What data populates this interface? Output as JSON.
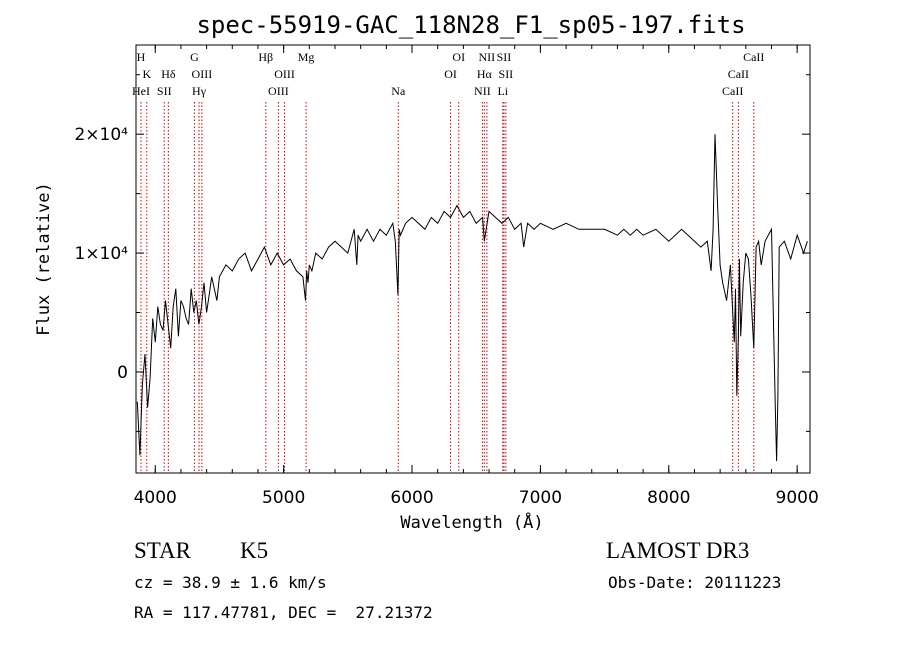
{
  "chart_data": {
    "type": "line",
    "title": "spec-55919-GAC_118N28_F1_sp05-197.fits",
    "xlabel": "Wavelength (Å)",
    "ylabel": "Flux (relative)",
    "xlim": [
      3850,
      9100
    ],
    "ylim": [
      -8500,
      27500
    ],
    "x_ticks": [
      4000,
      5000,
      6000,
      7000,
      8000,
      9000
    ],
    "y_ticks": [
      {
        "value": 0,
        "label": "0"
      },
      {
        "value": 10000,
        "label": "1×10⁴"
      },
      {
        "value": 20000,
        "label": "2×10⁴"
      }
    ],
    "series": [
      {
        "x": [
          3860,
          3880,
          3900,
          3920,
          3940,
          3960,
          3980,
          4000,
          4020,
          4040,
          4060,
          4080,
          4100,
          4120,
          4140,
          4160,
          4180,
          4200,
          4220,
          4240,
          4260,
          4280,
          4300,
          4320,
          4340,
          4360,
          4380,
          4400,
          4420,
          4440,
          4460,
          4480,
          4500,
          4550,
          4600,
          4650,
          4700,
          4750,
          4800,
          4850,
          4900,
          4950,
          5000,
          5050,
          5100,
          5150,
          5170,
          5180,
          5190,
          5200,
          5220,
          5250,
          5300,
          5350,
          5400,
          5450,
          5500,
          5550,
          5570,
          5580,
          5600,
          5650,
          5700,
          5750,
          5800,
          5850,
          5870,
          5890,
          5900,
          5910,
          5950,
          6000,
          6050,
          6100,
          6150,
          6200,
          6250,
          6300,
          6350,
          6400,
          6450,
          6500,
          6550,
          6563,
          6600,
          6650,
          6700,
          6750,
          6800,
          6850,
          6870,
          6900,
          6950,
          7000,
          7100,
          7200,
          7300,
          7400,
          7500,
          7600,
          7650,
          7700,
          7750,
          7800,
          7900,
          8000,
          8100,
          8200,
          8250,
          8300,
          8330,
          8345,
          8360,
          8380,
          8400,
          8420,
          8450,
          8480,
          8498,
          8510,
          8520,
          8530,
          8542,
          8550,
          8560,
          8580,
          8600,
          8620,
          8640,
          8662,
          8680,
          8700,
          8720,
          8750,
          8800,
          8830,
          8840,
          8850,
          8860,
          8900,
          8950,
          9000,
          9050,
          9080
        ],
        "y": [
          -2500,
          -7000,
          -1000,
          1500,
          -3000,
          -500,
          4500,
          2500,
          5500,
          4000,
          3500,
          6000,
          4000,
          2000,
          5500,
          7000,
          3000,
          6000,
          5500,
          4500,
          4000,
          7000,
          5000,
          6000,
          4000,
          5500,
          7500,
          5000,
          6500,
          8000,
          7000,
          6000,
          8000,
          9000,
          8500,
          9500,
          10000,
          8500,
          9500,
          10500,
          9000,
          10000,
          9000,
          9500,
          8500,
          8000,
          6000,
          8500,
          7500,
          9000,
          8500,
          10000,
          9500,
          10500,
          11000,
          10500,
          10000,
          12000,
          9000,
          11500,
          11000,
          12000,
          11000,
          12000,
          11500,
          12500,
          11000,
          6500,
          12000,
          11500,
          12500,
          13000,
          12500,
          12000,
          13000,
          12500,
          13500,
          13000,
          14000,
          13000,
          13500,
          12500,
          13000,
          11000,
          13500,
          13000,
          12500,
          13000,
          12000,
          12500,
          10500,
          12500,
          12000,
          12500,
          12000,
          12500,
          12000,
          12000,
          12000,
          11500,
          12000,
          11500,
          12000,
          11500,
          12000,
          11000,
          12000,
          11000,
          10500,
          11000,
          8500,
          12000,
          20000,
          14000,
          9000,
          7500,
          6000,
          9000,
          5000,
          2500,
          7000,
          -2000,
          3000,
          9500,
          3000,
          7500,
          10000,
          9500,
          6500,
          2000,
          10500,
          11000,
          9000,
          11000,
          12000,
          -3000,
          -7500,
          -2000,
          10500,
          11000,
          9500,
          11500,
          10000,
          11000
        ]
      }
    ],
    "lines": [
      {
        "name": "H",
        "x": 3889,
        "row": 0
      },
      {
        "name": "K",
        "x": 3934,
        "row": 1
      },
      {
        "name": "HeI",
        "x": 3889,
        "row": 2
      },
      {
        "name": "SII",
        "x": 4070,
        "row": 2
      },
      {
        "name": "Hδ",
        "x": 4102,
        "row": 1
      },
      {
        "name": "G",
        "x": 4305,
        "row": 0
      },
      {
        "name": "OIII",
        "x": 4363,
        "row": 1
      },
      {
        "name": "Hγ",
        "x": 4341,
        "row": 2
      },
      {
        "name": "Hβ",
        "x": 4861,
        "row": 0
      },
      {
        "name": "OIII",
        "x": 5007,
        "row": 1
      },
      {
        "name": "OIII",
        "x": 4959,
        "row": 2
      },
      {
        "name": "Mg",
        "x": 5175,
        "row": 0
      },
      {
        "name": "Na",
        "x": 5893,
        "row": 2
      },
      {
        "name": "OI",
        "x": 6364,
        "row": 0
      },
      {
        "name": "OI",
        "x": 6300,
        "row": 1
      },
      {
        "name": "NII",
        "x": 6583,
        "row": 0
      },
      {
        "name": "SII",
        "x": 6716,
        "row": 0
      },
      {
        "name": "Hα",
        "x": 6563,
        "row": 1
      },
      {
        "name": "SII",
        "x": 6731,
        "row": 1
      },
      {
        "name": "NII",
        "x": 6548,
        "row": 2
      },
      {
        "name": "Li",
        "x": 6707,
        "row": 2
      },
      {
        "name": "CaII",
        "x": 8662,
        "row": 0
      },
      {
        "name": "CaII",
        "x": 8542,
        "row": 1
      },
      {
        "name": "CaII",
        "x": 8498,
        "row": 2
      }
    ],
    "line_color": "#cc0000"
  },
  "info": {
    "class": "STAR",
    "subclass": "K5",
    "survey": "LAMOST DR3",
    "cz": "cz = 38.9 ± 1.6 km/s",
    "obs_date": "Obs-Date: 20111223",
    "coords": "RA = 117.47781, DEC =  27.21372"
  }
}
